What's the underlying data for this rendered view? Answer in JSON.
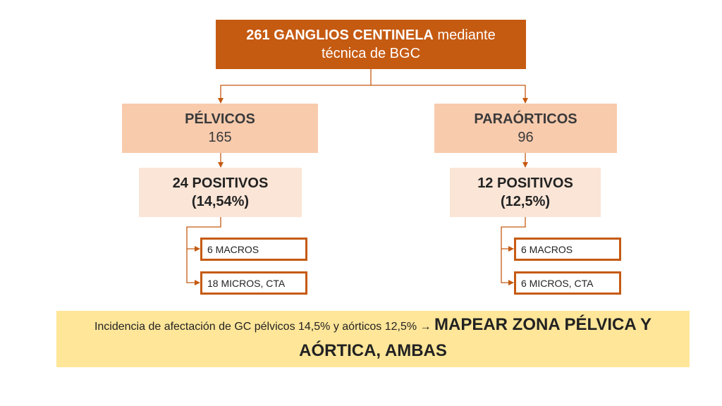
{
  "top": {
    "bold": "261 GANGLIOS CENTINELA",
    "rest": " mediante",
    "line2": "técnica de BGC"
  },
  "pelvic": {
    "title": "PÉLVICOS",
    "count": "165",
    "positives": "24 POSITIVOS",
    "pct": "(14,54%)",
    "macros": "6 MACROS",
    "micros": "18 MICROS, CTA"
  },
  "paraaortic": {
    "title": "PARAÓRTICOS",
    "count": "96",
    "positives": "12 POSITIVOS",
    "pct": "(12,5%)",
    "macros": "6 MACROS",
    "micros": "6 MICROS, CTA"
  },
  "summary": {
    "text": "Incidencia de afectación de GC pélvicos 14,5% y aórticos 12,5% ",
    "arrow": "→",
    "emphasis": "MAPEAR ZONA PÉLVICA Y AÓRTICA, AMBAS"
  },
  "colors": {
    "primary": "#c55a11",
    "level2": "#f8cbad",
    "level3": "#fbe5d6",
    "summary_bg": "#ffe699"
  }
}
